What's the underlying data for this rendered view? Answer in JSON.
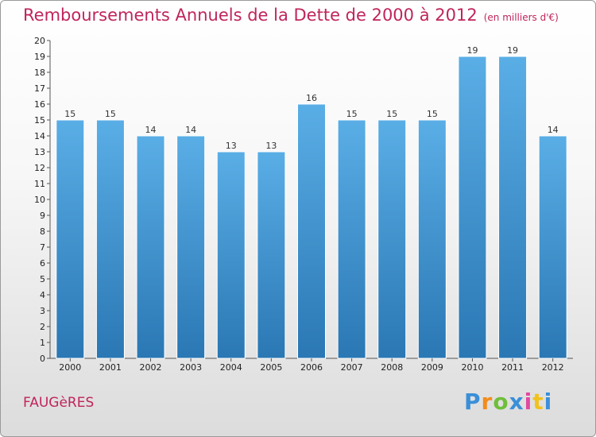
{
  "title": "Remboursements Annuels de la Dette de 2000 à 2012",
  "unit": "(en milliers d'€)",
  "place": "FAUGèRES",
  "logo": {
    "letters": [
      "P",
      "r",
      "o",
      "x",
      "i",
      "t",
      "i"
    ],
    "colors": [
      "#3a8fd8",
      "#f28c1c",
      "#6fbe3b",
      "#3a8fd8",
      "#e04aa0",
      "#f2c21c",
      "#3a8fd8"
    ]
  },
  "colors": {
    "bar_top": "#5aaee6",
    "bar_bottom": "#2a77b4",
    "accent": "#c0245c"
  },
  "chart_data": {
    "type": "bar",
    "categories": [
      "2000",
      "2001",
      "2002",
      "2003",
      "2004",
      "2005",
      "2006",
      "2007",
      "2008",
      "2009",
      "2010",
      "2011",
      "2012"
    ],
    "values": [
      15,
      15,
      14,
      14,
      13,
      13,
      16,
      15,
      15,
      15,
      19,
      19,
      14
    ],
    "ylim": [
      0,
      20
    ],
    "yticks": [
      0,
      1,
      2,
      3,
      4,
      5,
      6,
      7,
      8,
      9,
      10,
      11,
      12,
      13,
      14,
      15,
      16,
      17,
      18,
      19,
      20
    ],
    "grid": false,
    "data_labels": true
  }
}
